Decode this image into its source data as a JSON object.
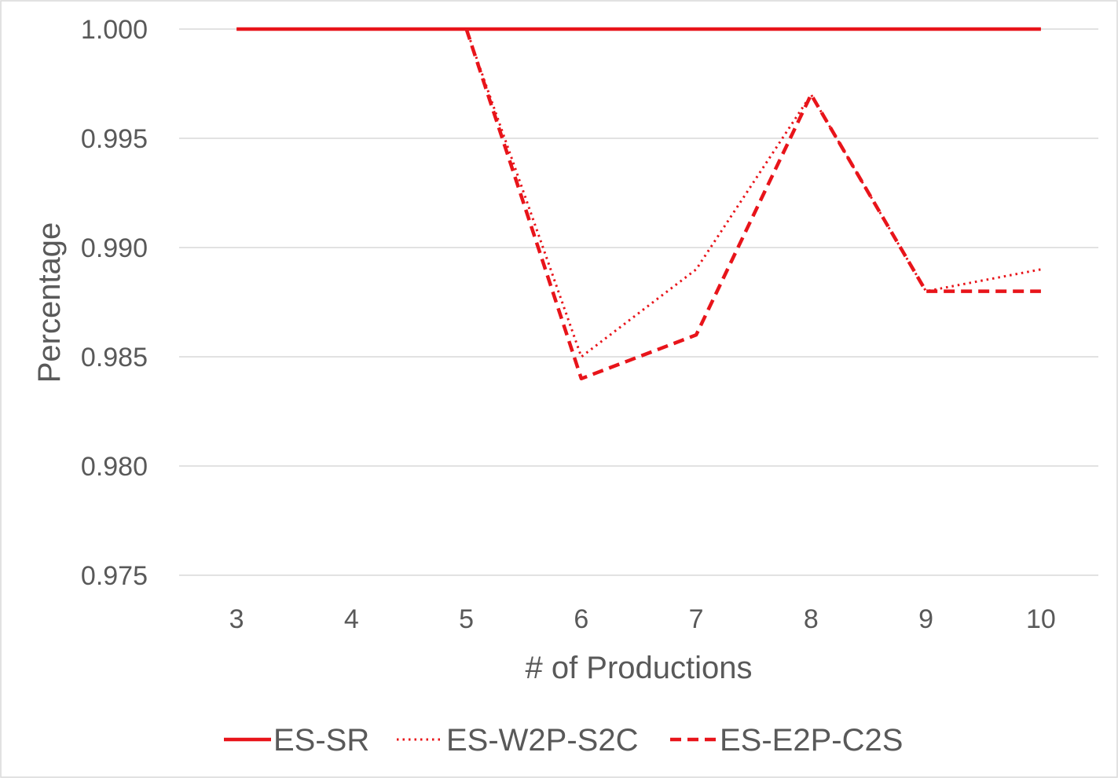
{
  "chart_data": {
    "type": "line",
    "title": "",
    "xlabel": "# of Productions",
    "ylabel": "Percentage",
    "categories": [
      "3",
      "4",
      "5",
      "6",
      "7",
      "8",
      "9",
      "10"
    ],
    "ylim": [
      0.975,
      1.0
    ],
    "yticks": [
      "0.975",
      "0.980",
      "0.985",
      "0.990",
      "0.995",
      "1.000"
    ],
    "grid": "horizontal",
    "legend_position": "bottom",
    "series": [
      {
        "name": "ES-SR",
        "values": [
          1.0,
          1.0,
          1.0,
          1.0,
          1.0,
          1.0,
          1.0,
          1.0
        ],
        "color": "#e8141a",
        "style": "solid"
      },
      {
        "name": "ES-W2P-S2C",
        "values": [
          null,
          null,
          1.0,
          0.985,
          0.989,
          0.997,
          0.988,
          0.989
        ],
        "color": "#e8141a",
        "style": "dotted"
      },
      {
        "name": "ES-E2P-C2S",
        "values": [
          null,
          null,
          1.0,
          0.984,
          0.986,
          0.997,
          0.988,
          0.988
        ],
        "color": "#e8141a",
        "style": "dashed"
      }
    ]
  }
}
